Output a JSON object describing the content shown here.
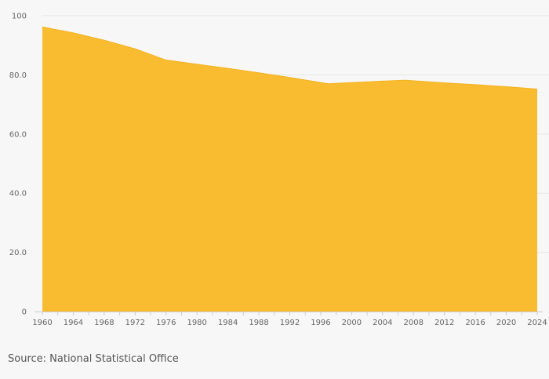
{
  "chart_data": {
    "type": "area",
    "x": [
      1960,
      1964,
      1968,
      1972,
      1976,
      1980,
      1984,
      1988,
      1992,
      1997,
      2000,
      2004,
      2007,
      2012,
      2016,
      2020,
      2024
    ],
    "values": [
      96.2,
      94.2,
      91.7,
      88.8,
      85.0,
      83.6,
      82.2,
      80.7,
      79.1,
      77.0,
      77.4,
      77.9,
      78.2,
      77.3,
      76.7,
      76.0,
      75.2
    ],
    "x_ticks": [
      "1960",
      "1964",
      "1968",
      "1972",
      "1976",
      "1980",
      "1984",
      "1988",
      "1992",
      "1996",
      "2000",
      "2004",
      "2008",
      "2012",
      "2016",
      "2020",
      "2024"
    ],
    "y_ticks": [
      "0",
      "20.0",
      "40.0",
      "60.0",
      "80.0",
      "100"
    ],
    "xlim": [
      1960,
      2024
    ],
    "ylim": [
      0,
      100
    ],
    "grid": true,
    "title": "",
    "xlabel": "",
    "ylabel": "",
    "colors": {
      "fill": "#f9bc31",
      "stroke": "#f3b21f",
      "grid": "#e6e6e6",
      "axis": "#cccccc"
    }
  },
  "source": "Source: National Statistical Office"
}
